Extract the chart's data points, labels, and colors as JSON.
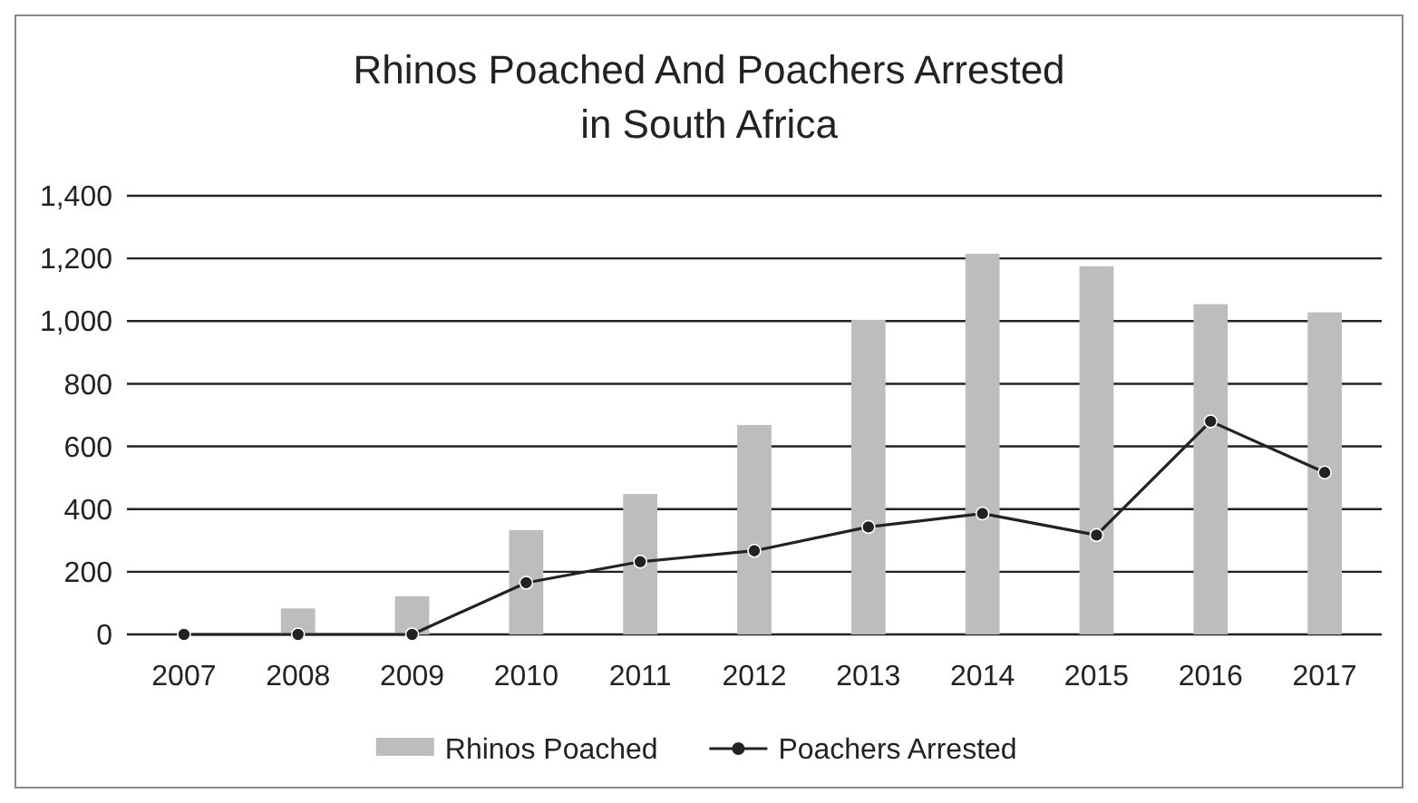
{
  "chart_data": {
    "type": "bar",
    "title": "Rhinos Poached And Poachers Arrested in South Africa",
    "categories": [
      "2007",
      "2008",
      "2009",
      "2010",
      "2011",
      "2012",
      "2013",
      "2014",
      "2015",
      "2016",
      "2017"
    ],
    "series": [
      {
        "name": "Rhinos Poached",
        "color": "#bdbdbd",
        "values": [
          null,
          83,
          122,
          333,
          448,
          668,
          1004,
          1215,
          1175,
          1054,
          1028
        ]
      },
      {
        "name": "Poachers Arrested",
        "type": "line",
        "color": "#222222",
        "values": [
          0,
          0,
          0,
          165,
          232,
          267,
          343,
          386,
          317,
          680,
          517
        ]
      }
    ],
    "ylim": [
      0,
      1400
    ],
    "yticks": [
      {
        "value": 0,
        "label": "0"
      },
      {
        "value": 200,
        "label": "200"
      },
      {
        "value": 400,
        "label": "400"
      },
      {
        "value": 600,
        "label": "600"
      },
      {
        "value": 800,
        "label": "800"
      },
      {
        "value": 1000,
        "label": "1,000"
      },
      {
        "value": 1200,
        "label": "1,200"
      },
      {
        "value": 1400,
        "label": "1,400"
      }
    ],
    "grid": "y",
    "legend": "bottom",
    "marker": "circle",
    "line_style": "solid"
  }
}
